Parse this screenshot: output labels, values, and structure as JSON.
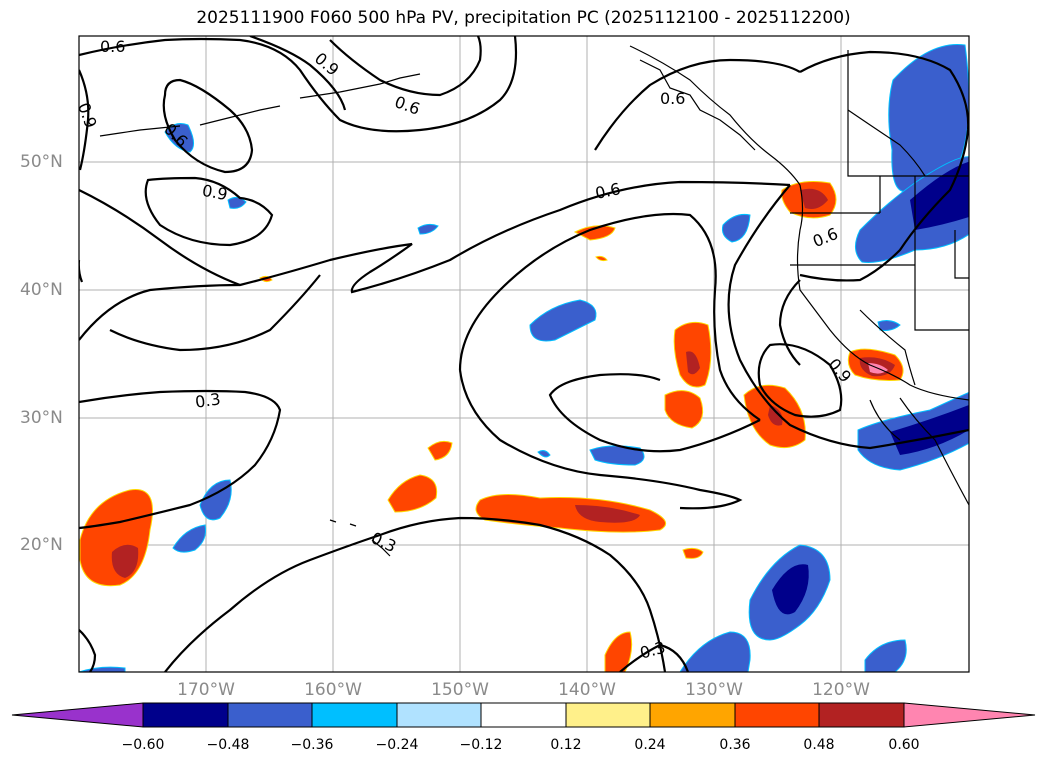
{
  "title": "2025111900 F060 500 hPa PV, precipitation PC (2025112100 - 2025112200)",
  "map": {
    "lat_labels": [
      "50°N",
      "40°N",
      "30°N",
      "20°N"
    ],
    "lon_labels": [
      "170°W",
      "160°W",
      "150°W",
      "140°W",
      "130°W",
      "120°W"
    ],
    "contour_labels": [
      "0.6",
      "0.9",
      "0.6",
      "0.6",
      "0.9",
      "0.6",
      "0.3",
      "0.6",
      "0.9",
      "0.3",
      "0.3"
    ]
  },
  "colorbar": {
    "ticks": [
      "−0.60",
      "−0.48",
      "−0.36",
      "−0.24",
      "−0.12",
      "0.12",
      "0.24",
      "0.36",
      "0.48",
      "0.60"
    ],
    "colors": [
      "#9932cc",
      "#00008b",
      "#3a5fcd",
      "#00bfff",
      "#b0e2ff",
      "#ffffff",
      "#fff08a",
      "#ffa500",
      "#ff4500",
      "#b22222",
      "#ff85b0"
    ]
  }
}
